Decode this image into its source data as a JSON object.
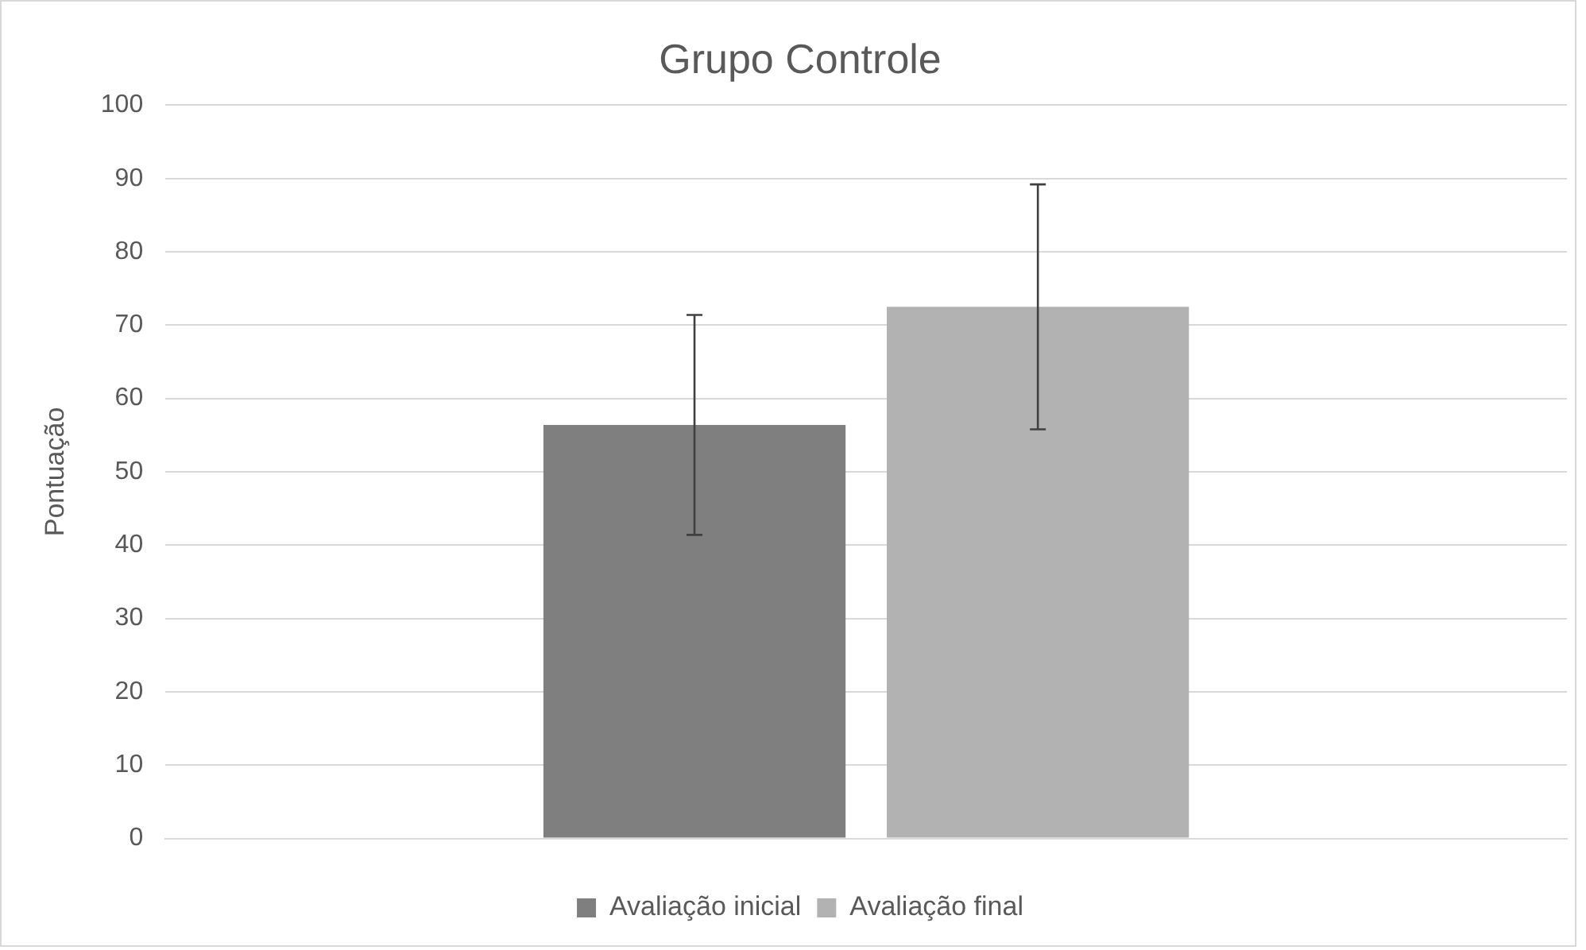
{
  "chart_data": {
    "type": "bar",
    "title": "Grupo Controle",
    "ylabel": "Pontuação",
    "categories": [
      null
    ],
    "series": [
      {
        "name": "Avaliação inicial",
        "color": "#7f7f7f",
        "values": [
          56.4
        ],
        "errors": [
          15
        ]
      },
      {
        "name": "Avaliação final",
        "color": "#b2b2b2",
        "values": [
          72.5
        ],
        "errors": [
          16.7
        ]
      }
    ],
    "ylim": [
      0,
      100
    ],
    "yticks": [
      0,
      10,
      20,
      30,
      40,
      50,
      60,
      70,
      80,
      90,
      100
    ],
    "grid": "y",
    "legend": "bottom"
  }
}
